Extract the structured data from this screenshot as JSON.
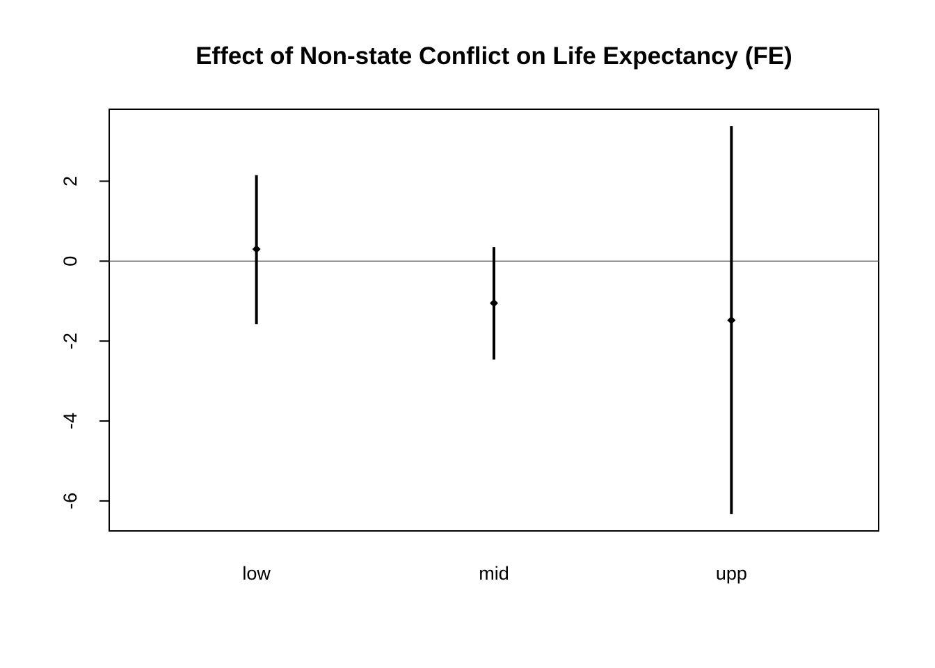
{
  "chart_data": {
    "type": "errorbar",
    "title": "Effect of Non-state Conflict on Life Expectancy (FE)",
    "xlabel": "",
    "ylabel": "",
    "categories": [
      "low",
      "mid",
      "upp"
    ],
    "estimates": [
      0.3,
      -1.05,
      -1.48
    ],
    "lower": [
      -1.58,
      -2.46,
      -6.33
    ],
    "upper": [
      2.15,
      0.35,
      3.38
    ],
    "xlim": [
      0.38,
      3.62
    ],
    "ylim": [
      -6.75,
      3.8
    ],
    "yticks": [
      -6,
      -4,
      -2,
      0,
      2
    ],
    "reference_line": 0,
    "grid": false,
    "legend": "none",
    "colors": {
      "points": "#000000",
      "bars": "#000000",
      "reference_line": "#555555"
    }
  }
}
